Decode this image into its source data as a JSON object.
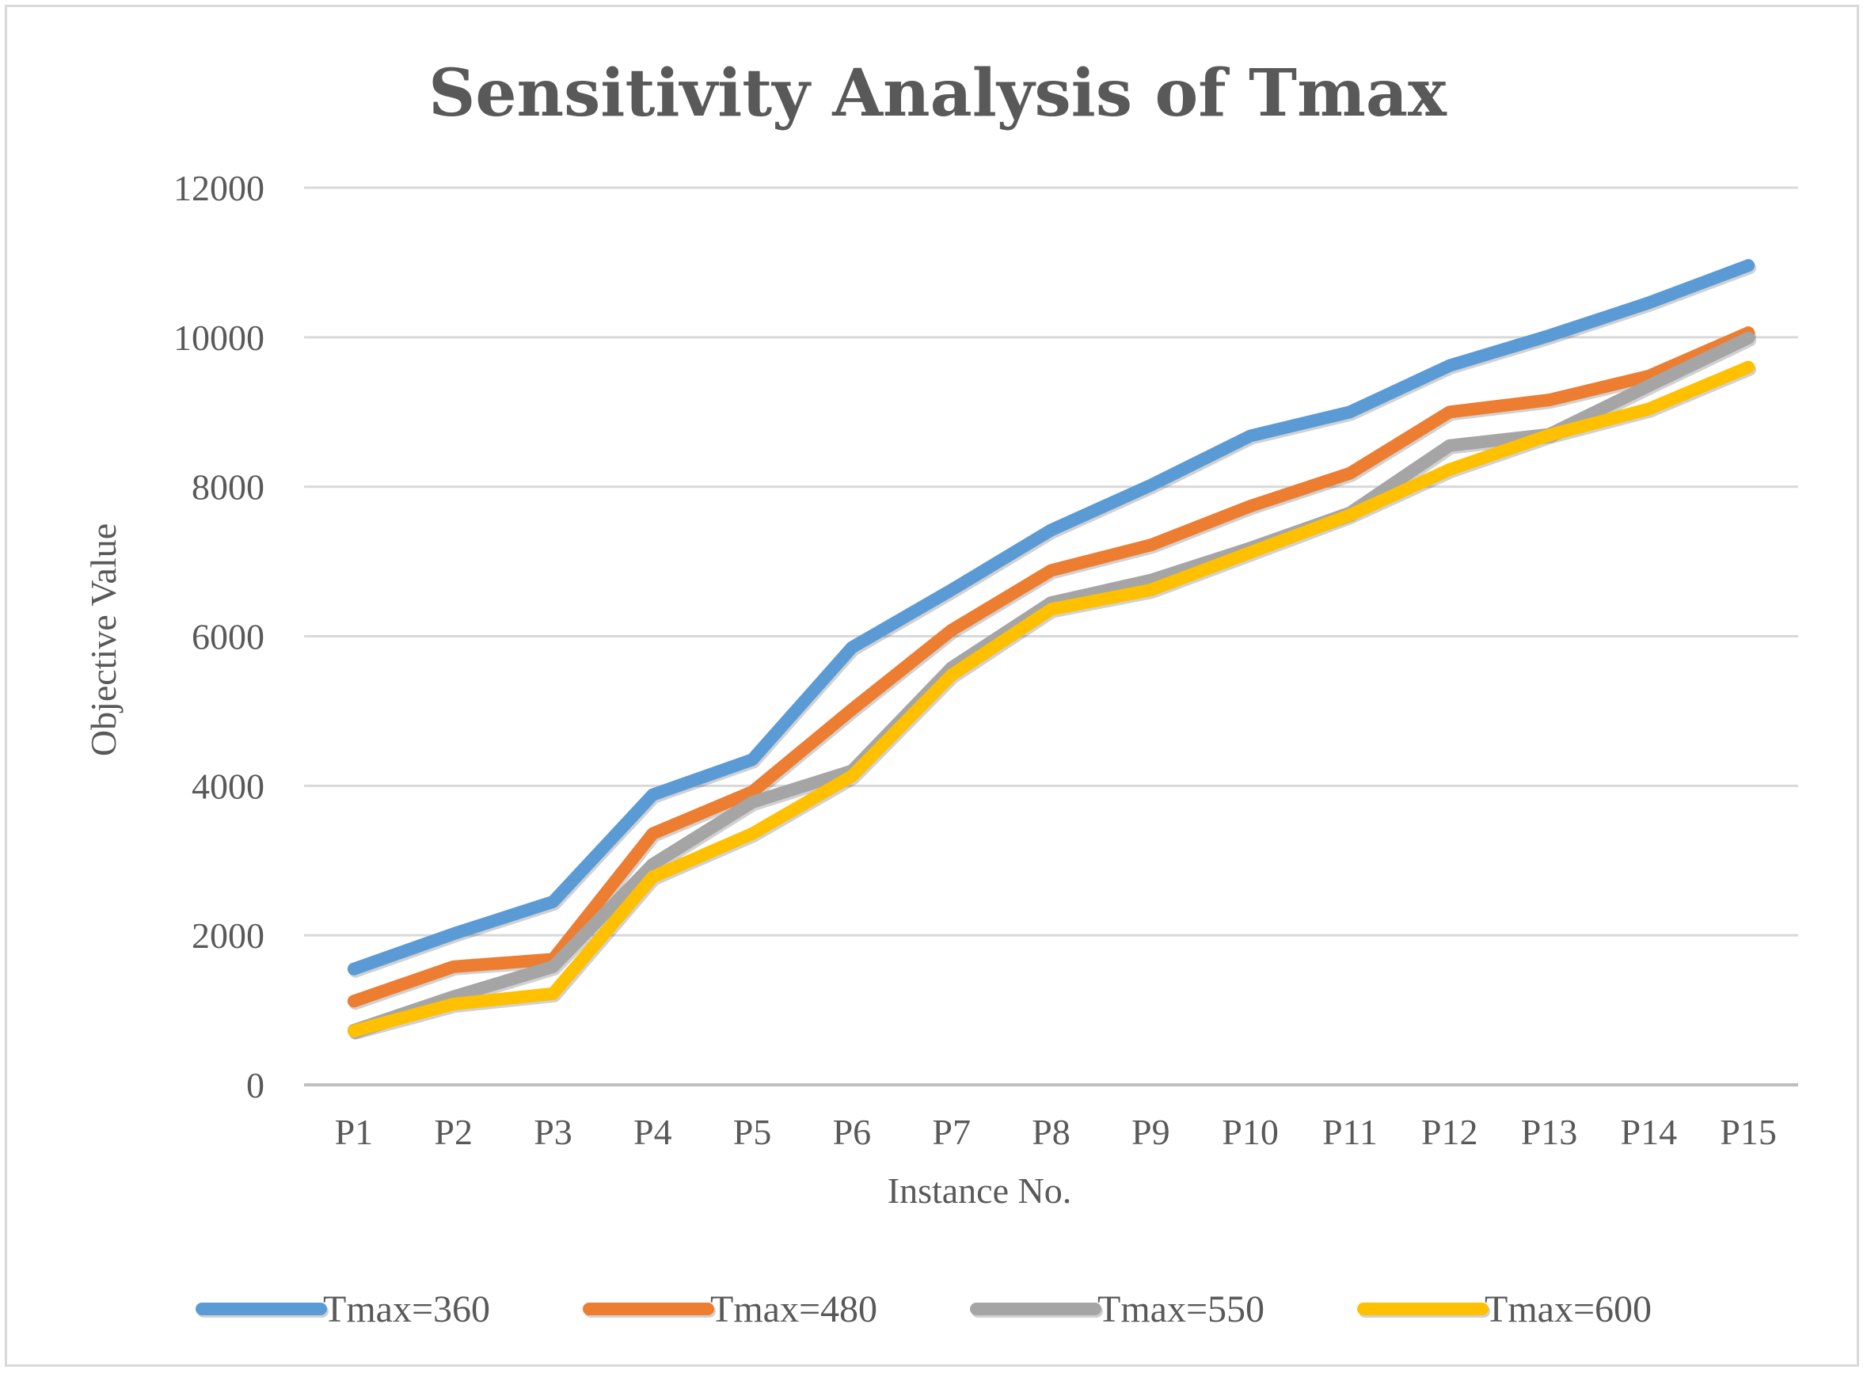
{
  "chart_data": {
    "type": "line",
    "title": "Sensitivity Analysis of Tmax",
    "xlabel": "Instance No.",
    "ylabel": "Objective Value",
    "categories": [
      "P1",
      "P2",
      "P3",
      "P4",
      "P5",
      "P6",
      "P7",
      "P8",
      "P9",
      "P10",
      "P11",
      "P12",
      "P13",
      "P14",
      "P15"
    ],
    "ylim": [
      0,
      12000
    ],
    "yticks": [
      "0",
      "2000",
      "4000",
      "6000",
      "8000",
      "10000",
      "12000"
    ],
    "grid": true,
    "legend_position": "bottom",
    "series": [
      {
        "name": "Tmax=360",
        "color": "#5b9bd5",
        "values": [
          1550,
          2020,
          2450,
          3880,
          4350,
          5850,
          6620,
          7420,
          8020,
          8680,
          9000,
          9620,
          10020,
          10460,
          10960
        ]
      },
      {
        "name": "Tmax=480",
        "color": "#ed7d31",
        "values": [
          1120,
          1580,
          1680,
          3360,
          3920,
          5020,
          6080,
          6880,
          7220,
          7740,
          8180,
          9000,
          9160,
          9480,
          10060
        ]
      },
      {
        "name": "Tmax=550",
        "color": "#a5a5a5",
        "values": [
          730,
          1180,
          1580,
          2950,
          3780,
          4200,
          5580,
          6450,
          6750,
          7180,
          7650,
          8550,
          8700,
          9350,
          9990
        ]
      },
      {
        "name": "Tmax=600",
        "color": "#ffc000",
        "values": [
          720,
          1080,
          1220,
          2780,
          3360,
          4130,
          5480,
          6360,
          6620,
          7120,
          7620,
          8230,
          8690,
          9040,
          9600
        ]
      }
    ]
  }
}
